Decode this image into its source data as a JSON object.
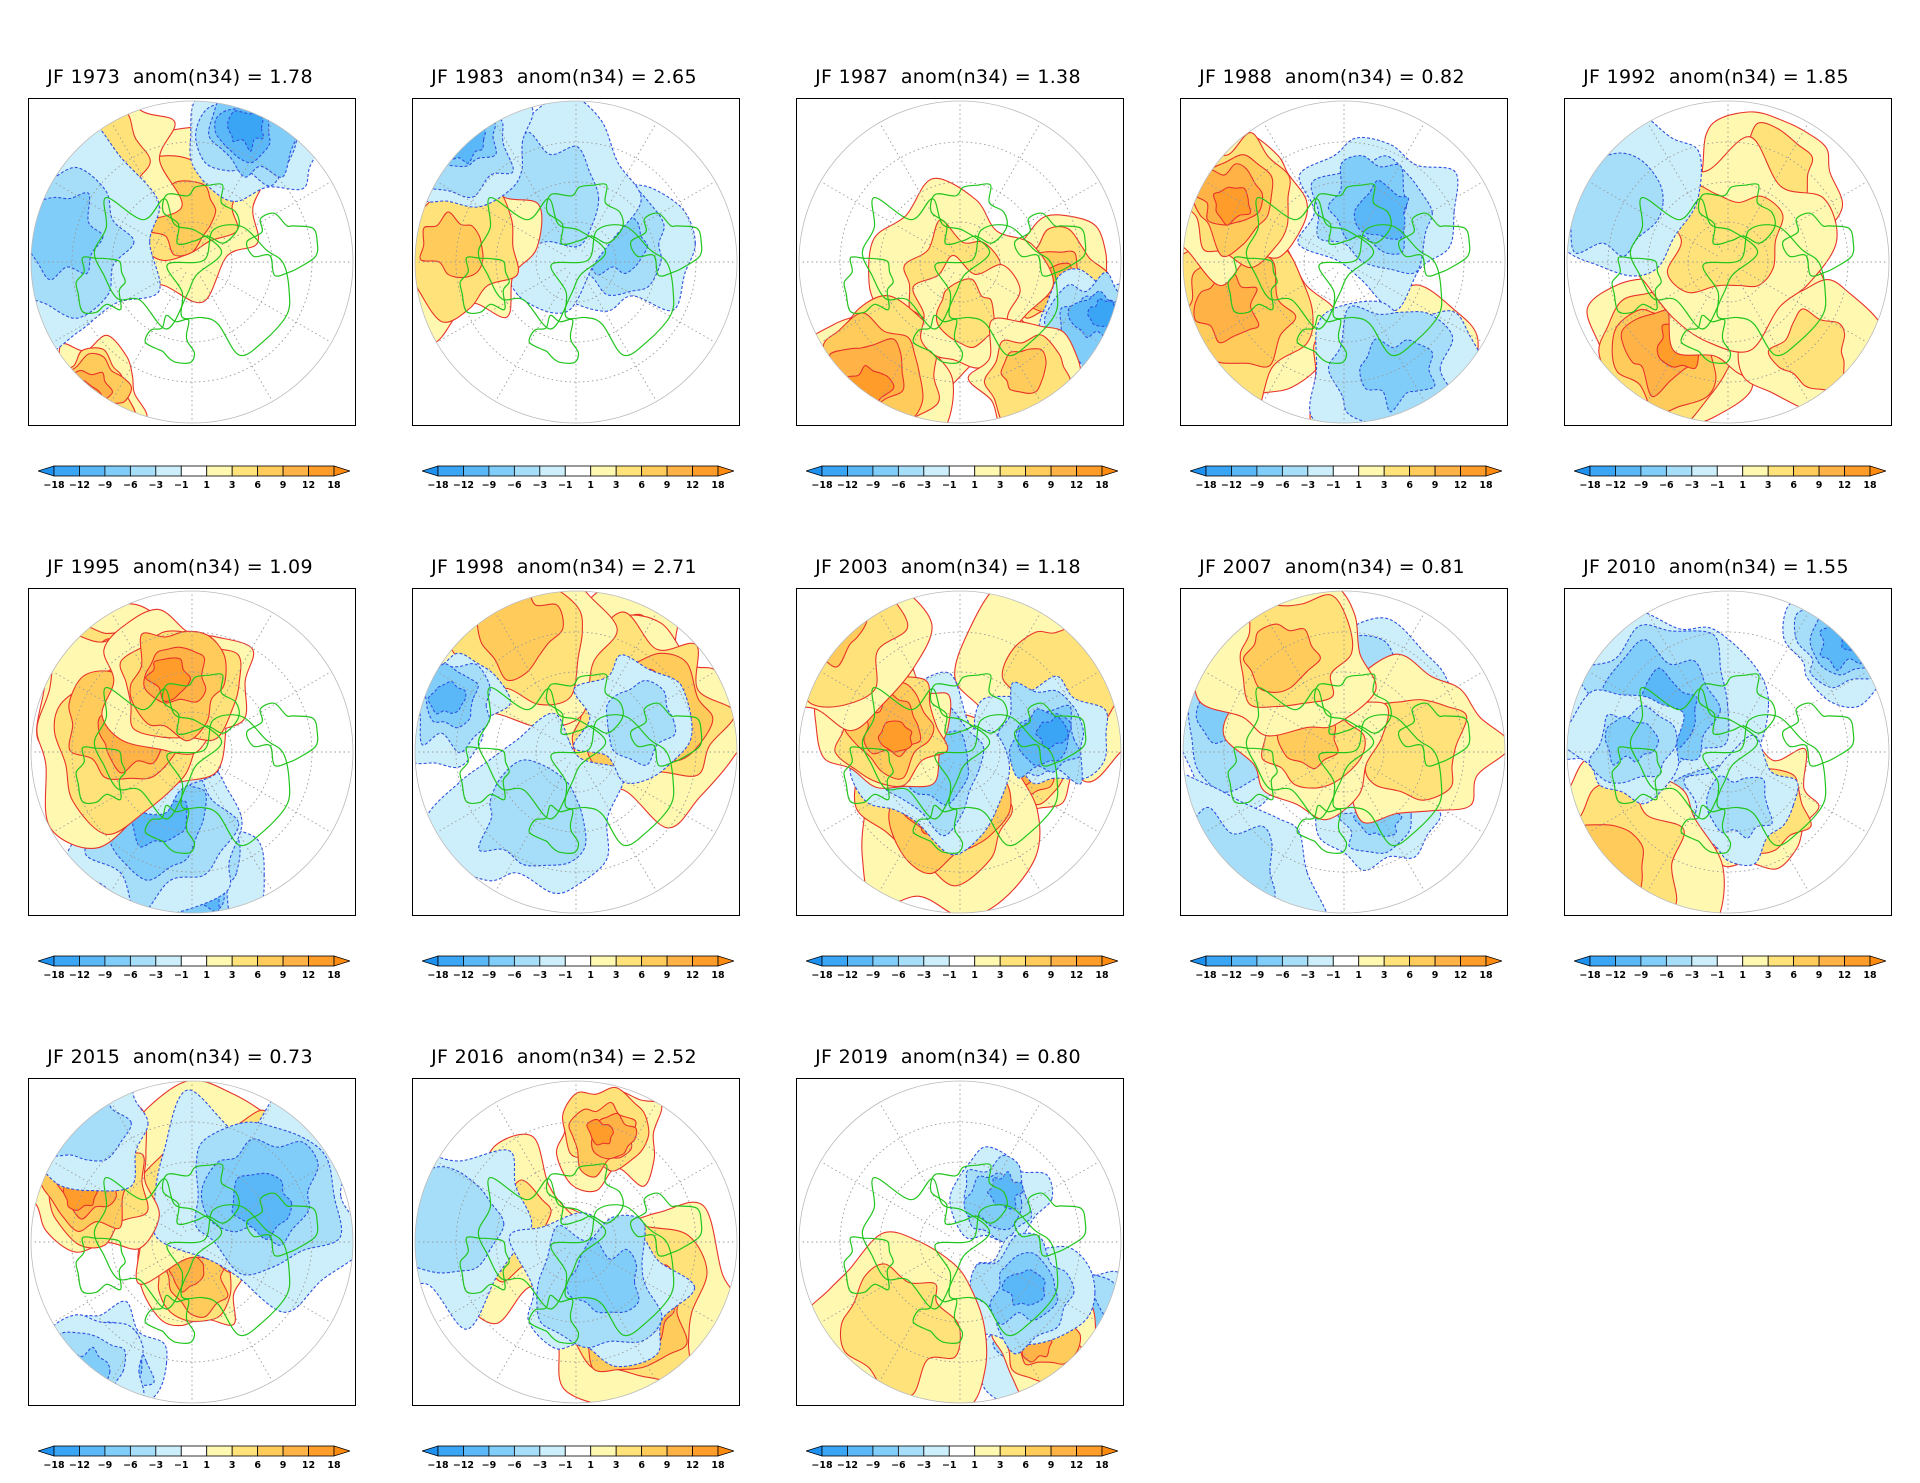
{
  "figure": {
    "panels": [
      {
        "season": "JF",
        "year": "1973",
        "index_label": "anom(n34)",
        "value": "1.78"
      },
      {
        "season": "JF",
        "year": "1983",
        "index_label": "anom(n34)",
        "value": "2.65"
      },
      {
        "season": "JF",
        "year": "1987",
        "index_label": "anom(n34)",
        "value": "1.38"
      },
      {
        "season": "JF",
        "year": "1988",
        "index_label": "anom(n34)",
        "value": "0.82"
      },
      {
        "season": "JF",
        "year": "1992",
        "index_label": "anom(n34)",
        "value": "1.85"
      },
      {
        "season": "JF",
        "year": "1995",
        "index_label": "anom(n34)",
        "value": "1.09"
      },
      {
        "season": "JF",
        "year": "1998",
        "index_label": "anom(n34)",
        "value": "2.71"
      },
      {
        "season": "JF",
        "year": "2003",
        "index_label": "anom(n34)",
        "value": "1.18"
      },
      {
        "season": "JF",
        "year": "2007",
        "index_label": "anom(n34)",
        "value": "0.81"
      },
      {
        "season": "JF",
        "year": "2010",
        "index_label": "anom(n34)",
        "value": "1.55"
      },
      {
        "season": "JF",
        "year": "2015",
        "index_label": "anom(n34)",
        "value": "0.73"
      },
      {
        "season": "JF",
        "year": "2016",
        "index_label": "anom(n34)",
        "value": "2.52"
      },
      {
        "season": "JF",
        "year": "2019",
        "index_label": "anom(n34)",
        "value": "0.80"
      }
    ],
    "colorbar": {
      "levels": [
        "-18",
        "-12",
        "-9",
        "-6",
        "-3",
        "-1",
        "1",
        "3",
        "6",
        "9",
        "12",
        "18"
      ],
      "colors": [
        "#1e90f0",
        "#3aa5f5",
        "#5ab8f8",
        "#80cdfa",
        "#a6def9",
        "#cdeffb",
        "#ffffff",
        "#fff8b0",
        "#ffe27a",
        "#ffcc5c",
        "#ffb347",
        "#ff9c2a",
        "#ff8a10"
      ]
    },
    "styles": {
      "positive_contour": "#e8332a",
      "negative_contour": "#3050e0",
      "coastline": "#22c51e",
      "graticule": "#9a9a9a"
    }
  }
}
